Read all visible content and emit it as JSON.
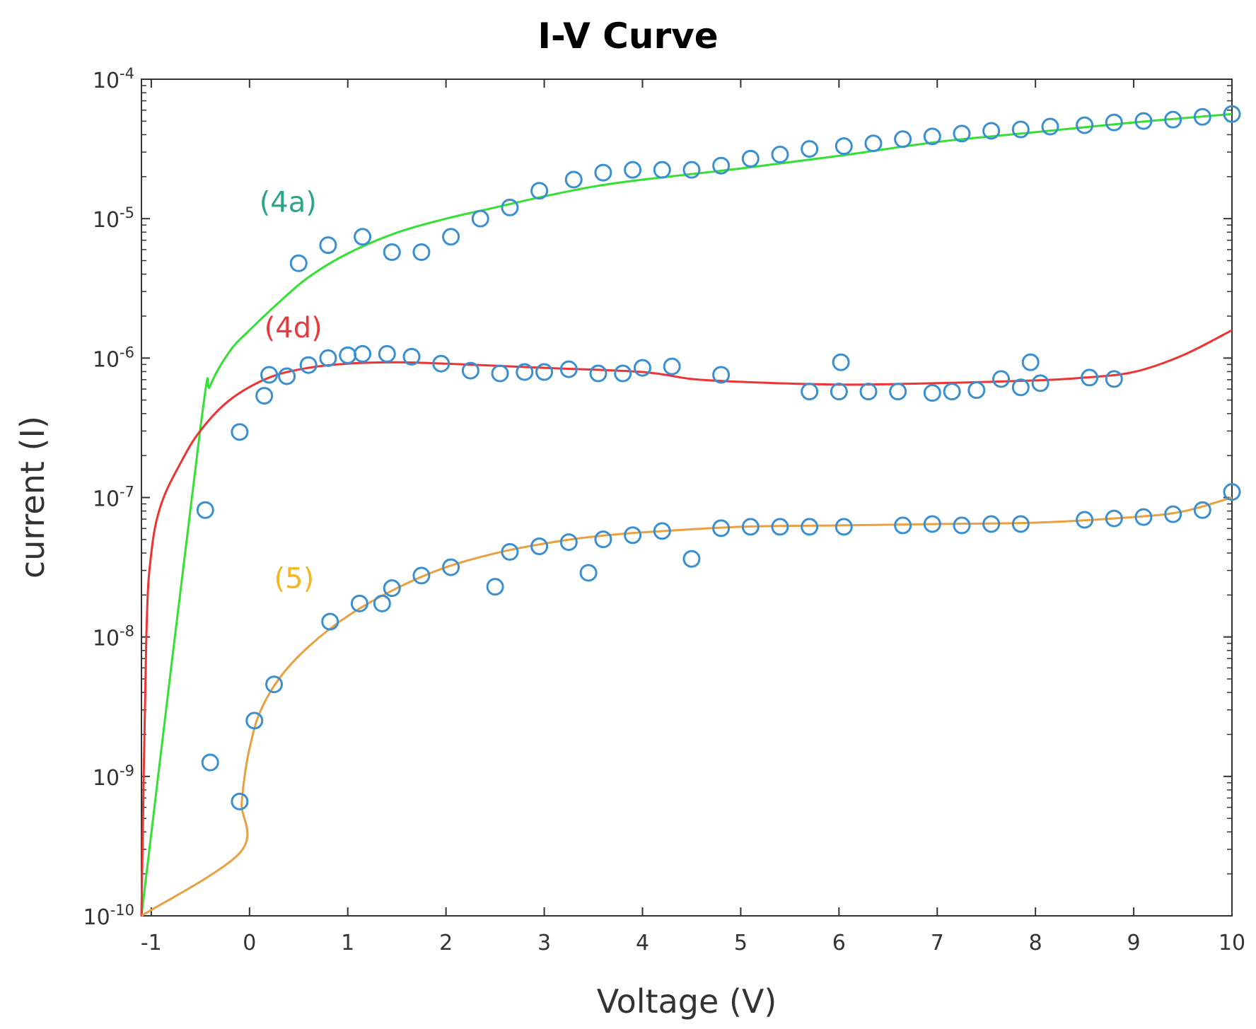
{
  "chart_data": {
    "type": "scatter",
    "title": "I-V Curve",
    "xlabel": "Voltage (V)",
    "ylabel": "current (I)",
    "xlim": [
      -1.1,
      10
    ],
    "ylim_log10": [
      -10,
      -4
    ],
    "y_scale": "log",
    "x_ticks": [
      {
        "value": -1,
        "label": "-1"
      },
      {
        "value": 0,
        "label": "0"
      },
      {
        "value": 1,
        "label": "1"
      },
      {
        "value": 2,
        "label": "2"
      },
      {
        "value": 3,
        "label": "3"
      },
      {
        "value": 4,
        "label": "4"
      },
      {
        "value": 5,
        "label": "5"
      },
      {
        "value": 6,
        "label": "6"
      },
      {
        "value": 7,
        "label": "7"
      },
      {
        "value": 8,
        "label": "8"
      },
      {
        "value": 9,
        "label": "9"
      },
      {
        "value": 10,
        "label": "10"
      }
    ],
    "y_ticks": [
      {
        "exp": -4,
        "base": "10",
        "sup": "-4"
      },
      {
        "exp": -5,
        "base": "10",
        "sup": "-5"
      },
      {
        "exp": -6,
        "base": "10",
        "sup": "-6"
      },
      {
        "exp": -7,
        "base": "10",
        "sup": "-7"
      },
      {
        "exp": -8,
        "base": "10",
        "sup": "-8"
      },
      {
        "exp": -9,
        "base": "10",
        "sup": "-9"
      },
      {
        "exp": -10,
        "base": "10",
        "sup": "-10"
      }
    ],
    "marker_color": "#3a8fd0",
    "series": [
      {
        "name": "(4a)",
        "label_color": "#2aa58c",
        "fit_color": "#33e033",
        "label_at": {
          "x": 0.1,
          "log10y": -4.95
        },
        "fit_log10": [
          [
            -1.1,
            -10
          ],
          [
            -0.5,
            -6.5
          ],
          [
            -0.4,
            -6.2
          ],
          [
            -0.2,
            -5.95
          ],
          [
            0,
            -5.8
          ],
          [
            0.3,
            -5.6
          ],
          [
            0.6,
            -5.42
          ],
          [
            1,
            -5.25
          ],
          [
            1.5,
            -5.1
          ],
          [
            2,
            -5.0
          ],
          [
            2.5,
            -4.92
          ],
          [
            3,
            -4.84
          ],
          [
            3.5,
            -4.77
          ],
          [
            4,
            -4.72
          ],
          [
            5,
            -4.64
          ],
          [
            6,
            -4.55
          ],
          [
            7,
            -4.45
          ],
          [
            8,
            -4.38
          ],
          [
            9,
            -4.31
          ],
          [
            10,
            -4.25
          ]
        ],
        "points": [
          {
            "x": 0.5,
            "log10y": -5.32
          },
          {
            "x": 0.8,
            "log10y": -5.19
          },
          {
            "x": 1.15,
            "log10y": -5.13
          },
          {
            "x": 1.45,
            "log10y": -5.24
          },
          {
            "x": 1.75,
            "log10y": -5.24
          },
          {
            "x": 2.05,
            "log10y": -5.13
          },
          {
            "x": 2.35,
            "log10y": -5.0
          },
          {
            "x": 2.65,
            "log10y": -4.92
          },
          {
            "x": 2.95,
            "log10y": -4.8
          },
          {
            "x": 3.3,
            "log10y": -4.72
          },
          {
            "x": 3.6,
            "log10y": -4.67
          },
          {
            "x": 3.9,
            "log10y": -4.65
          },
          {
            "x": 4.2,
            "log10y": -4.65
          },
          {
            "x": 4.5,
            "log10y": -4.65
          },
          {
            "x": 4.8,
            "log10y": -4.62
          },
          {
            "x": 5.1,
            "log10y": -4.57
          },
          {
            "x": 5.4,
            "log10y": -4.54
          },
          {
            "x": 5.7,
            "log10y": -4.5
          },
          {
            "x": 6.05,
            "log10y": -4.48
          },
          {
            "x": 6.35,
            "log10y": -4.46
          },
          {
            "x": 6.65,
            "log10y": -4.43
          },
          {
            "x": 6.95,
            "log10y": -4.41
          },
          {
            "x": 7.25,
            "log10y": -4.39
          },
          {
            "x": 7.55,
            "log10y": -4.37
          },
          {
            "x": 7.85,
            "log10y": -4.36
          },
          {
            "x": 8.15,
            "log10y": -4.34
          },
          {
            "x": 8.5,
            "log10y": -4.33
          },
          {
            "x": 8.8,
            "log10y": -4.31
          },
          {
            "x": 9.1,
            "log10y": -4.3
          },
          {
            "x": 9.4,
            "log10y": -4.29
          },
          {
            "x": 9.7,
            "log10y": -4.27
          },
          {
            "x": 10,
            "log10y": -4.25
          }
        ]
      },
      {
        "name": "(4d)",
        "label_color": "#e83a3a",
        "fit_color": "#ee3333",
        "label_at": {
          "x": 0.15,
          "log10y": -5.85
        },
        "fit_log10": [
          [
            -1.1,
            -10
          ],
          [
            -1.05,
            -8.0
          ],
          [
            -1.0,
            -7.4
          ],
          [
            -0.9,
            -7.05
          ],
          [
            -0.7,
            -6.75
          ],
          [
            -0.5,
            -6.52
          ],
          [
            -0.2,
            -6.3
          ],
          [
            0.2,
            -6.14
          ],
          [
            0.6,
            -6.07
          ],
          [
            1.0,
            -6.04
          ],
          [
            1.5,
            -6.03
          ],
          [
            2.0,
            -6.04
          ],
          [
            3.0,
            -6.07
          ],
          [
            4.0,
            -6.1
          ],
          [
            4.5,
            -6.15
          ],
          [
            5.0,
            -6.17
          ],
          [
            6.0,
            -6.19
          ],
          [
            7.0,
            -6.18
          ],
          [
            8.0,
            -6.16
          ],
          [
            8.5,
            -6.14
          ],
          [
            9.0,
            -6.1
          ],
          [
            9.5,
            -5.98
          ],
          [
            10,
            -5.8
          ]
        ],
        "points": [
          {
            "x": -0.1,
            "log10y": -6.53
          },
          {
            "x": 0.15,
            "log10y": -6.27
          },
          {
            "x": 0.2,
            "log10y": -6.12
          },
          {
            "x": 0.38,
            "log10y": -6.13
          },
          {
            "x": 0.6,
            "log10y": -6.05
          },
          {
            "x": 0.8,
            "log10y": -6.0
          },
          {
            "x": 1.0,
            "log10y": -5.98
          },
          {
            "x": 1.15,
            "log10y": -5.97
          },
          {
            "x": 1.4,
            "log10y": -5.97
          },
          {
            "x": 1.65,
            "log10y": -5.99
          },
          {
            "x": 1.95,
            "log10y": -6.04
          },
          {
            "x": 2.25,
            "log10y": -6.09
          },
          {
            "x": 2.55,
            "log10y": -6.11
          },
          {
            "x": 2.8,
            "log10y": -6.1
          },
          {
            "x": 3.0,
            "log10y": -6.1
          },
          {
            "x": 3.25,
            "log10y": -6.08
          },
          {
            "x": 3.55,
            "log10y": -6.11
          },
          {
            "x": 3.8,
            "log10y": -6.11
          },
          {
            "x": 4.0,
            "log10y": -6.07
          },
          {
            "x": 4.3,
            "log10y": -6.06
          },
          {
            "x": 4.8,
            "log10y": -6.12
          },
          {
            "x": 5.7,
            "log10y": -6.24
          },
          {
            "x": 6.0,
            "log10y": -6.24
          },
          {
            "x": 6.02,
            "log10y": -6.03
          },
          {
            "x": 6.3,
            "log10y": -6.24
          },
          {
            "x": 6.6,
            "log10y": -6.24
          },
          {
            "x": 6.95,
            "log10y": -6.25
          },
          {
            "x": 7.15,
            "log10y": -6.24
          },
          {
            "x": 7.4,
            "log10y": -6.23
          },
          {
            "x": 7.65,
            "log10y": -6.15
          },
          {
            "x": 7.85,
            "log10y": -6.21
          },
          {
            "x": 7.95,
            "log10y": -6.03
          },
          {
            "x": 8.05,
            "log10y": -6.18
          },
          {
            "x": 8.55,
            "log10y": -6.14
          },
          {
            "x": 8.8,
            "log10y": -6.15
          }
        ]
      },
      {
        "name": "(5)",
        "label_color": "#f5b521",
        "fit_color": "#e8a040",
        "label_at": {
          "x": 0.25,
          "log10y": -7.65
        },
        "fit_log10": [
          [
            -1.1,
            -10
          ],
          [
            -0.1,
            -9.55
          ],
          [
            -0.08,
            -9.2
          ],
          [
            -0.05,
            -9.0
          ],
          [
            0,
            -8.8
          ],
          [
            0.1,
            -8.55
          ],
          [
            0.3,
            -8.3
          ],
          [
            0.6,
            -8.07
          ],
          [
            1.0,
            -7.85
          ],
          [
            1.5,
            -7.65
          ],
          [
            2.0,
            -7.5
          ],
          [
            2.5,
            -7.4
          ],
          [
            3.0,
            -7.33
          ],
          [
            3.5,
            -7.28
          ],
          [
            4.0,
            -7.25
          ],
          [
            5.0,
            -7.21
          ],
          [
            6.0,
            -7.2
          ],
          [
            7.0,
            -7.19
          ],
          [
            8.0,
            -7.18
          ],
          [
            9.0,
            -7.14
          ],
          [
            9.5,
            -7.1
          ],
          [
            10,
            -7.0
          ]
        ],
        "points": [
          {
            "x": -0.4,
            "log10y": -8.9
          },
          {
            "x": -0.1,
            "log10y": -9.18
          },
          {
            "x": 0.05,
            "log10y": -8.6
          },
          {
            "x": 0.25,
            "log10y": -8.34
          },
          {
            "x": 0.82,
            "log10y": -7.89
          },
          {
            "x": 1.12,
            "log10y": -7.76
          },
          {
            "x": 1.35,
            "log10y": -7.76
          },
          {
            "x": 1.45,
            "log10y": -7.65
          },
          {
            "x": 1.75,
            "log10y": -7.56
          },
          {
            "x": 2.05,
            "log10y": -7.5
          },
          {
            "x": 2.5,
            "log10y": -7.64
          },
          {
            "x": 2.65,
            "log10y": -7.39
          },
          {
            "x": 2.95,
            "log10y": -7.35
          },
          {
            "x": 3.25,
            "log10y": -7.32
          },
          {
            "x": 3.45,
            "log10y": -7.54
          },
          {
            "x": 3.6,
            "log10y": -7.3
          },
          {
            "x": 3.9,
            "log10y": -7.27
          },
          {
            "x": 4.2,
            "log10y": -7.24
          },
          {
            "x": 4.5,
            "log10y": -7.44
          },
          {
            "x": 4.8,
            "log10y": -7.22
          },
          {
            "x": 5.1,
            "log10y": -7.21
          },
          {
            "x": 5.4,
            "log10y": -7.21
          },
          {
            "x": 5.7,
            "log10y": -7.21
          },
          {
            "x": 6.05,
            "log10y": -7.21
          },
          {
            "x": 6.65,
            "log10y": -7.2
          },
          {
            "x": 6.95,
            "log10y": -7.19
          },
          {
            "x": 7.25,
            "log10y": -7.2
          },
          {
            "x": 7.55,
            "log10y": -7.19
          },
          {
            "x": 7.85,
            "log10y": -7.19
          },
          {
            "x": 8.5,
            "log10y": -7.16
          },
          {
            "x": 8.8,
            "log10y": -7.15
          },
          {
            "x": 9.1,
            "log10y": -7.14
          },
          {
            "x": 9.4,
            "log10y": -7.12
          },
          {
            "x": 9.7,
            "log10y": -7.09
          },
          {
            "x": 10,
            "log10y": -6.96
          }
        ]
      }
    ],
    "extra_points": [
      {
        "x": -0.45,
        "log10y": -7.09
      }
    ]
  }
}
